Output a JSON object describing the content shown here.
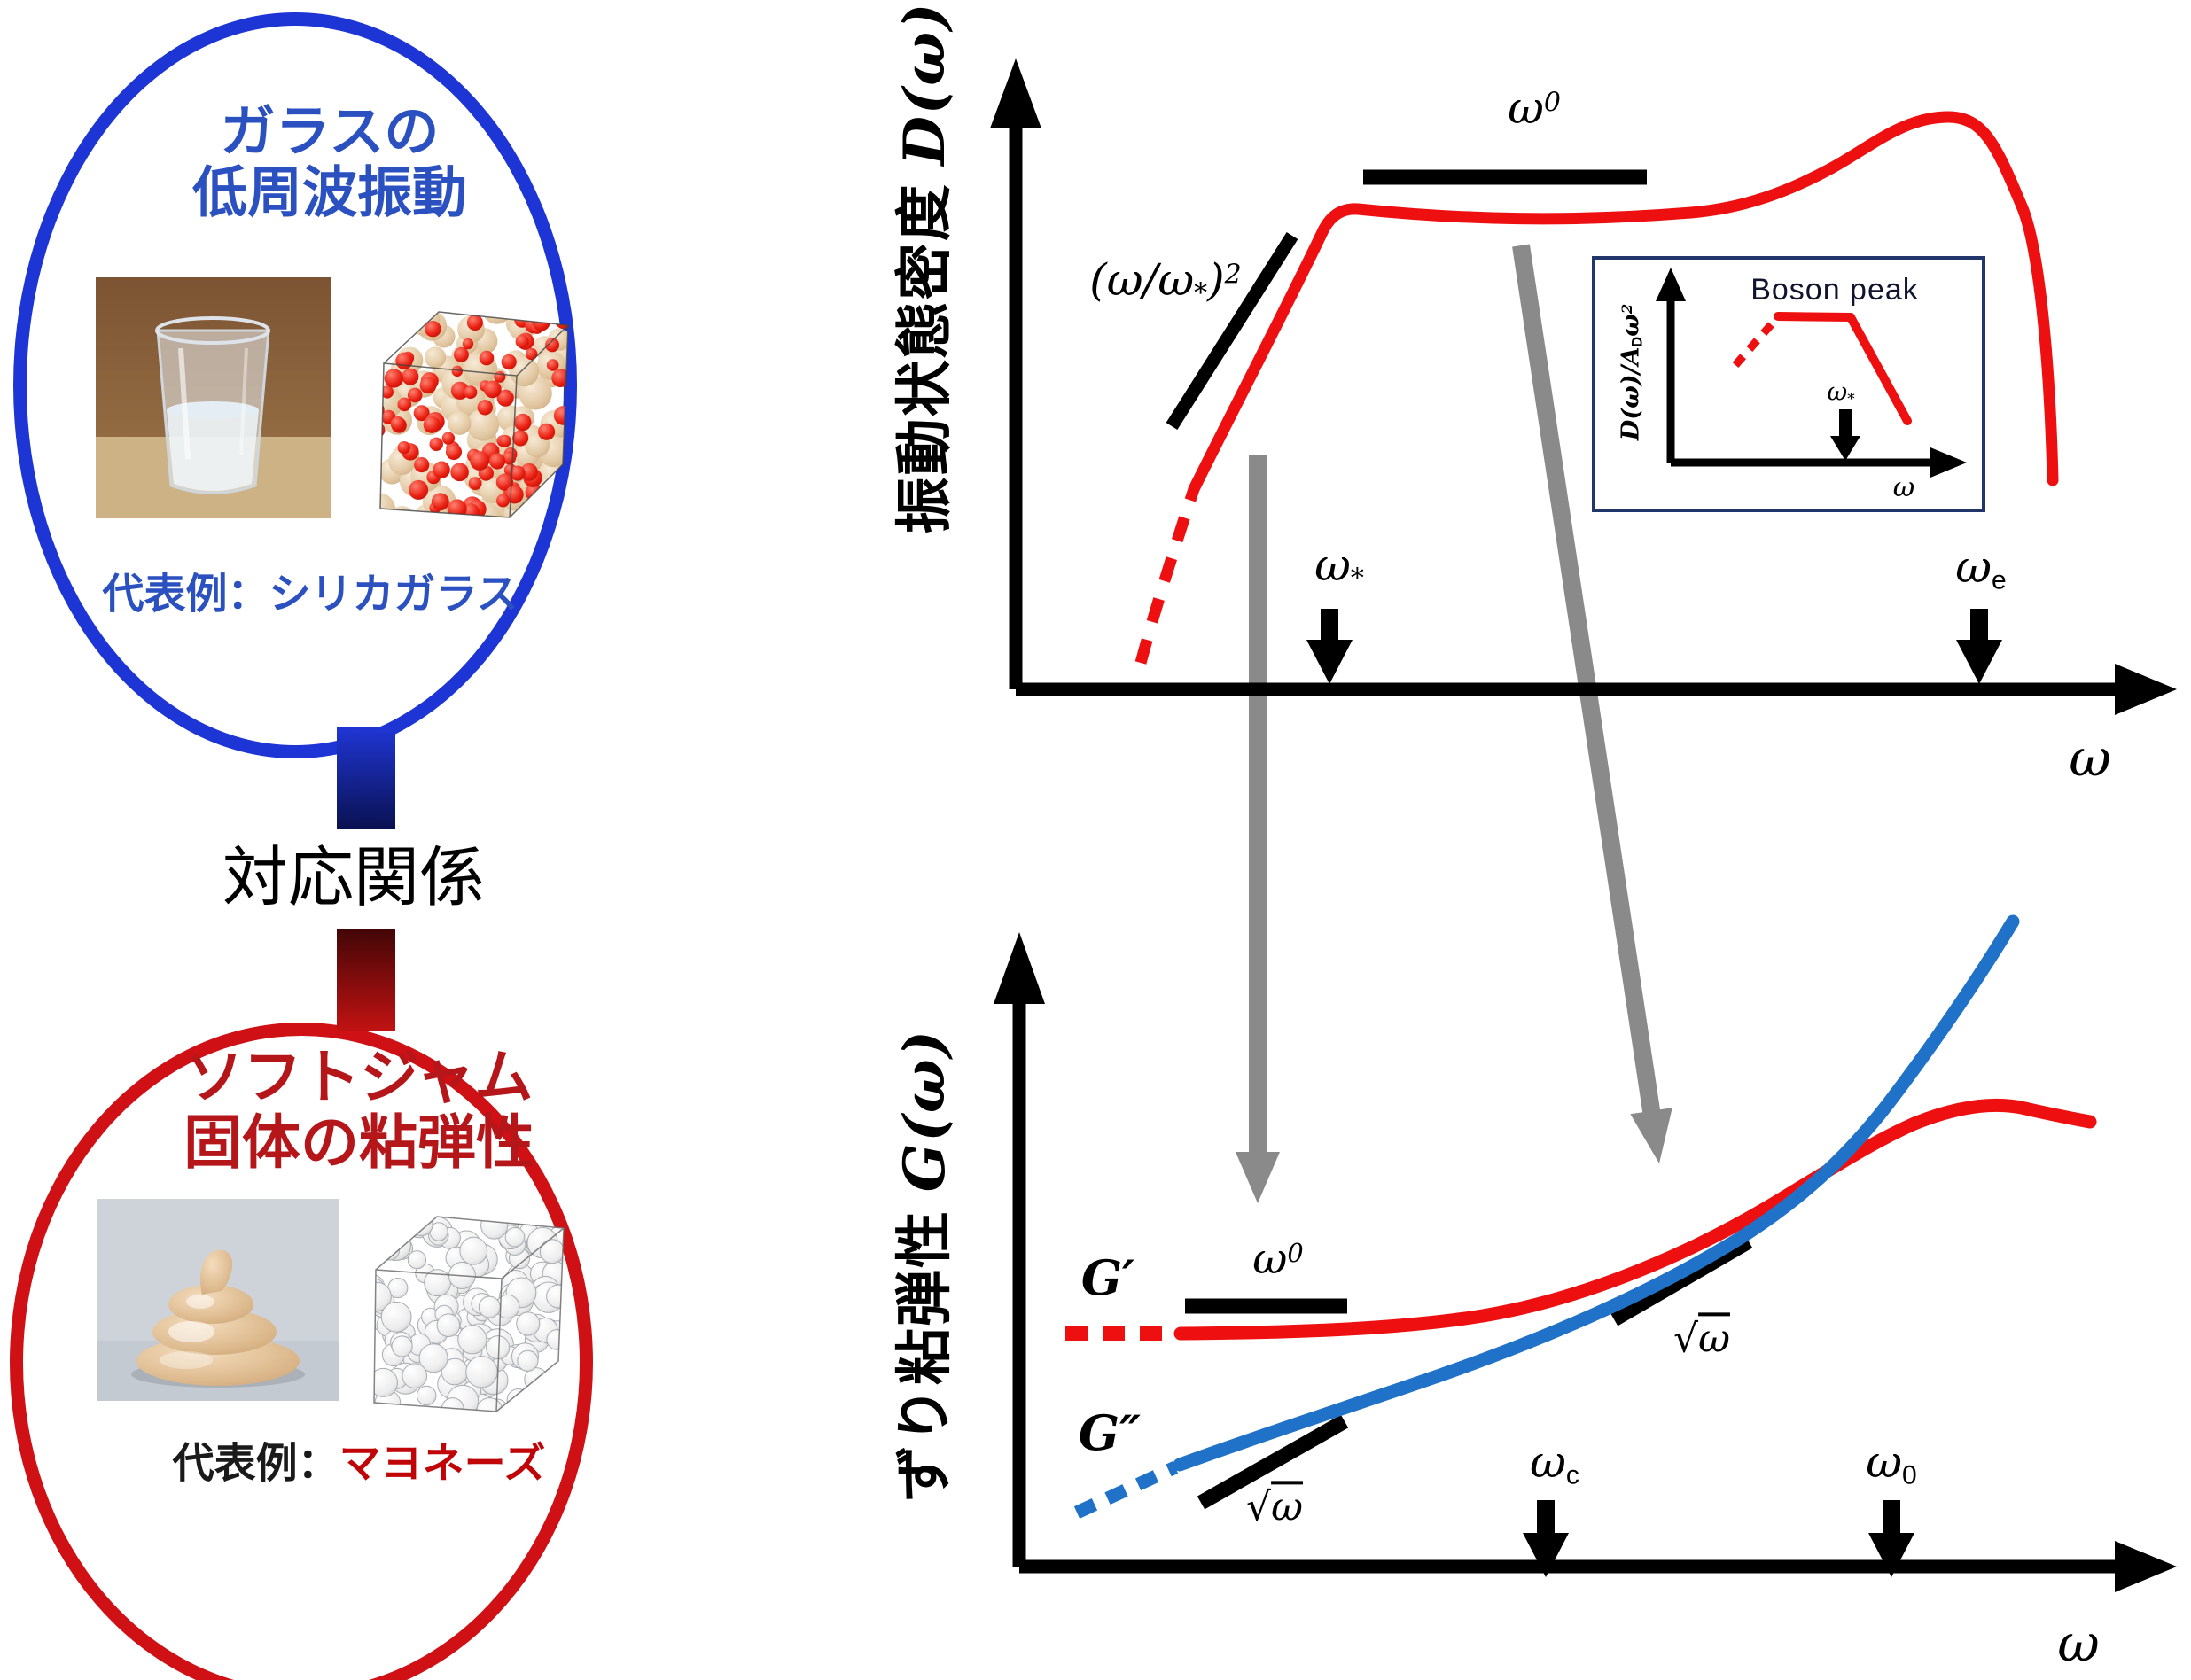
{
  "left_panel": {
    "glass": {
      "title_line1": "ガラスの",
      "title_line2": "低周波振動",
      "caption_label": "代表例：",
      "caption_value": "シリカガラス"
    },
    "connector_label": "対応関係",
    "jam": {
      "title_line1": "ソフトジャム",
      "title_line2": "固体の粘弾性",
      "caption_label": "代表例：",
      "caption_value": "マヨネーズ"
    }
  },
  "dos_plot": {
    "y_label_jp": "振動状態密度",
    "y_label_math": "D(ω)",
    "x_label": "ω",
    "slope_label": {
      "body": "(ω/ω",
      "sub": "*",
      "close": ")",
      "sup": "2"
    },
    "plateau_label": {
      "base": "ω",
      "sup": "0"
    },
    "omega_star": {
      "base": "ω",
      "sub": "*"
    },
    "omega_e": {
      "base": "ω",
      "sub": "e"
    }
  },
  "inset": {
    "title": "Boson peak",
    "y_label": {
      "a": "D(ω)/A",
      "sub": "D",
      "b": "ω",
      "sup": "2"
    },
    "x_label": "ω",
    "omega_star": {
      "base": "ω",
      "sub": "*"
    }
  },
  "g_plot": {
    "y_label_jp": "ずり粘弾性",
    "y_label_math": "G(ω)",
    "x_label": "ω",
    "g_prime": "G′",
    "g_double_prime": "G″",
    "plateau_label": {
      "base": "ω",
      "sup": "0"
    },
    "sqrt_low": {
      "root": "√",
      "arg": "ω"
    },
    "sqrt_high": {
      "root": "√",
      "arg": "ω"
    },
    "omega_c": {
      "base": "ω",
      "sub": "c"
    },
    "omega_zero": {
      "base": "ω",
      "sub": "0"
    }
  },
  "colors": {
    "red_curve": "#ee1010",
    "blue_curve": "#1f72c8",
    "gray_arrow": "#8a8a8a",
    "glass_blue_ring": "#1c35d4",
    "glass_blue_text": "#2b50c0",
    "jam_red_ring": "#cf1014",
    "jam_red_text": "#b5161a",
    "inset_border": "#23366b"
  }
}
